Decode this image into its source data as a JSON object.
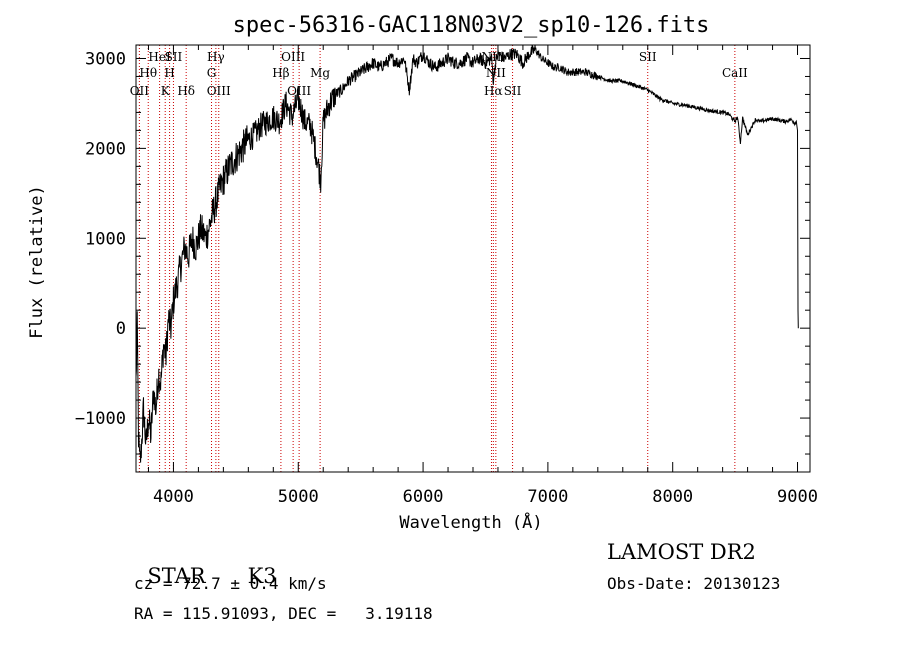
{
  "chart_data": {
    "type": "line",
    "title": "spec-56316-GAC118N03V2_sp10-126.fits",
    "xlabel": "Wavelength (Å)",
    "ylabel": "Flux (relative)",
    "xlim": [
      3700,
      9100
    ],
    "ylim": [
      -1600,
      3150
    ],
    "xticks": [
      4000,
      5000,
      6000,
      7000,
      8000,
      9000
    ],
    "yticks": [
      -1000,
      0,
      1000,
      2000,
      3000
    ],
    "minor_x_step": 200,
    "minor_y_step": 200,
    "grid": false,
    "line_color": "#000000",
    "marker_color": "#cc0000",
    "spectrum": {
      "name": "",
      "x": [
        3700,
        3710,
        3720,
        3730,
        3740,
        3760,
        3780,
        3800,
        3820,
        3840,
        3860,
        3880,
        3900,
        3920,
        3940,
        3960,
        3980,
        4000,
        4030,
        4060,
        4090,
        4120,
        4150,
        4180,
        4220,
        4260,
        4300,
        4320,
        4340,
        4360,
        4400,
        4450,
        4500,
        4550,
        4600,
        4650,
        4700,
        4750,
        4800,
        4850,
        4900,
        4950,
        5000,
        5050,
        5100,
        5150,
        5180,
        5200,
        5250,
        5300,
        5350,
        5400,
        5450,
        5500,
        5550,
        5600,
        5650,
        5700,
        5750,
        5800,
        5850,
        5890,
        5920,
        5950,
        6000,
        6050,
        6100,
        6150,
        6200,
        6250,
        6300,
        6350,
        6400,
        6450,
        6500,
        6550,
        6563,
        6580,
        6600,
        6650,
        6700,
        6750,
        6800,
        6850,
        6900,
        6950,
        7000,
        7050,
        7100,
        7150,
        7200,
        7300,
        7400,
        7500,
        7600,
        7700,
        7800,
        7850,
        7900,
        8000,
        8100,
        8200,
        8300,
        8400,
        8450,
        8498,
        8520,
        8542,
        8560,
        8600,
        8662,
        8700,
        8800,
        8900,
        8950,
        8980,
        8990,
        9000,
        9002,
        9004,
        9006
      ],
      "y": [
        -600,
        0,
        -1200,
        -1500,
        -1400,
        -900,
        -1300,
        -1000,
        -1200,
        -700,
        -900,
        -500,
        -600,
        -200,
        -300,
        100,
        0,
        300,
        500,
        700,
        900,
        800,
        1000,
        900,
        1100,
        1000,
        1200,
        1300,
        1400,
        1500,
        1650,
        1800,
        1900,
        2000,
        2100,
        2150,
        2250,
        2300,
        2350,
        2300,
        2500,
        2350,
        2550,
        2300,
        2250,
        1900,
        1650,
        2300,
        2500,
        2600,
        2650,
        2750,
        2800,
        2850,
        2900,
        2950,
        2900,
        2950,
        3000,
        2950,
        3000,
        2650,
        3000,
        2950,
        3050,
        2950,
        2900,
        2950,
        3000,
        2950,
        2950,
        3000,
        2950,
        3000,
        2950,
        3000,
        2750,
        2950,
        3050,
        3000,
        3050,
        3050,
        2950,
        3050,
        3100,
        3000,
        2950,
        2900,
        2900,
        2850,
        2850,
        2850,
        2800,
        2750,
        2750,
        2700,
        2650,
        2600,
        2550,
        2500,
        2480,
        2450,
        2420,
        2400,
        2380,
        2300,
        2350,
        2060,
        2340,
        2150,
        2320,
        2300,
        2330,
        2300,
        2320,
        2280,
        2300,
        2200,
        1000,
        200,
        0
      ]
    },
    "lines": [
      {
        "label": "OII",
        "x": 3727,
        "row": 3
      },
      {
        "label": "Hθ",
        "x": 3798,
        "row": 2
      },
      {
        "label": "HeI",
        "x": 3889,
        "row": 1
      },
      {
        "label": "K",
        "x": 3934,
        "row": 3
      },
      {
        "label": "SII",
        "x": 4000,
        "row": 1
      },
      {
        "label": "H",
        "x": 3969,
        "row": 2
      },
      {
        "label": "Hδ",
        "x": 4102,
        "row": 3
      },
      {
        "label": "Hγ",
        "x": 4340,
        "row": 1
      },
      {
        "label": "G",
        "x": 4305,
        "row": 2
      },
      {
        "label": "OIII",
        "x": 4363,
        "row": 3
      },
      {
        "label": "OIII",
        "x": 4959,
        "row": 1
      },
      {
        "label": "Hβ",
        "x": 4861,
        "row": 2
      },
      {
        "label": "OIII",
        "x": 5007,
        "row": 3
      },
      {
        "label": "Mg",
        "x": 5175,
        "row": 2
      },
      {
        "label": "NII",
        "x": 6548,
        "row": 1
      },
      {
        "label": "NII",
        "x": 6583,
        "row": 2
      },
      {
        "label": "Hα",
        "x": 6563,
        "row": 3
      },
      {
        "label": "SII",
        "x": 6717,
        "row": 3
      },
      {
        "label": "SII",
        "x": 7800,
        "row": 1
      },
      {
        "label": "CaII",
        "x": 8498,
        "row": 2
      }
    ]
  },
  "info": {
    "class_label": "STAR",
    "subclass_label": "K3",
    "survey_label": "LAMOST DR2",
    "cz_text": "cz = 72.7 ± 0.4 km/s",
    "obs_date_text": "Obs-Date: 20130123",
    "coords_text": "RA = 115.91093, DEC =   3.19118"
  }
}
